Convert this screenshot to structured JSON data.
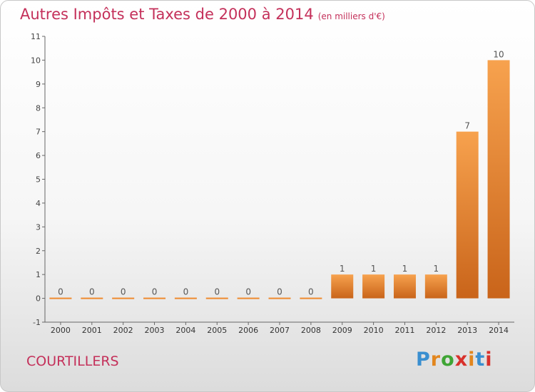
{
  "chart_data": {
    "type": "bar",
    "title": "Autres Impôts et Taxes de 2000 à 2014",
    "subtitle": "(en milliers d'€)",
    "categories": [
      "2000",
      "2001",
      "2002",
      "2003",
      "2004",
      "2005",
      "2006",
      "2007",
      "2008",
      "2009",
      "2010",
      "2011",
      "2012",
      "2013",
      "2014"
    ],
    "values": [
      0,
      0,
      0,
      0,
      0,
      0,
      0,
      0,
      0,
      1,
      1,
      1,
      1,
      7,
      10
    ],
    "data_labels": [
      "0",
      "0",
      "0",
      "0",
      "0",
      "0",
      "0",
      "0",
      "0",
      "1",
      "1",
      "1",
      "1",
      "7",
      "10"
    ],
    "y_ticks": [
      "-1",
      "0",
      "1",
      "2",
      "3",
      "4",
      "5",
      "6",
      "7",
      "8",
      "9",
      "10",
      "11"
    ],
    "ylim": [
      -1,
      11
    ],
    "grid": false,
    "bar_color": "#ef8a2e",
    "title_color": "#c4305a"
  },
  "footer": {
    "commune": "COURTILLERS",
    "brand_letters": [
      {
        "ch": "P",
        "color": "#3a8fd0"
      },
      {
        "ch": "r",
        "color": "#e2861e"
      },
      {
        "ch": "o",
        "color": "#3fa535"
      },
      {
        "ch": "x",
        "color": "#d8312c"
      },
      {
        "ch": "i",
        "color": "#e2861e"
      },
      {
        "ch": "t",
        "color": "#3a8fd0"
      },
      {
        "ch": "i",
        "color": "#d8312c"
      }
    ]
  }
}
